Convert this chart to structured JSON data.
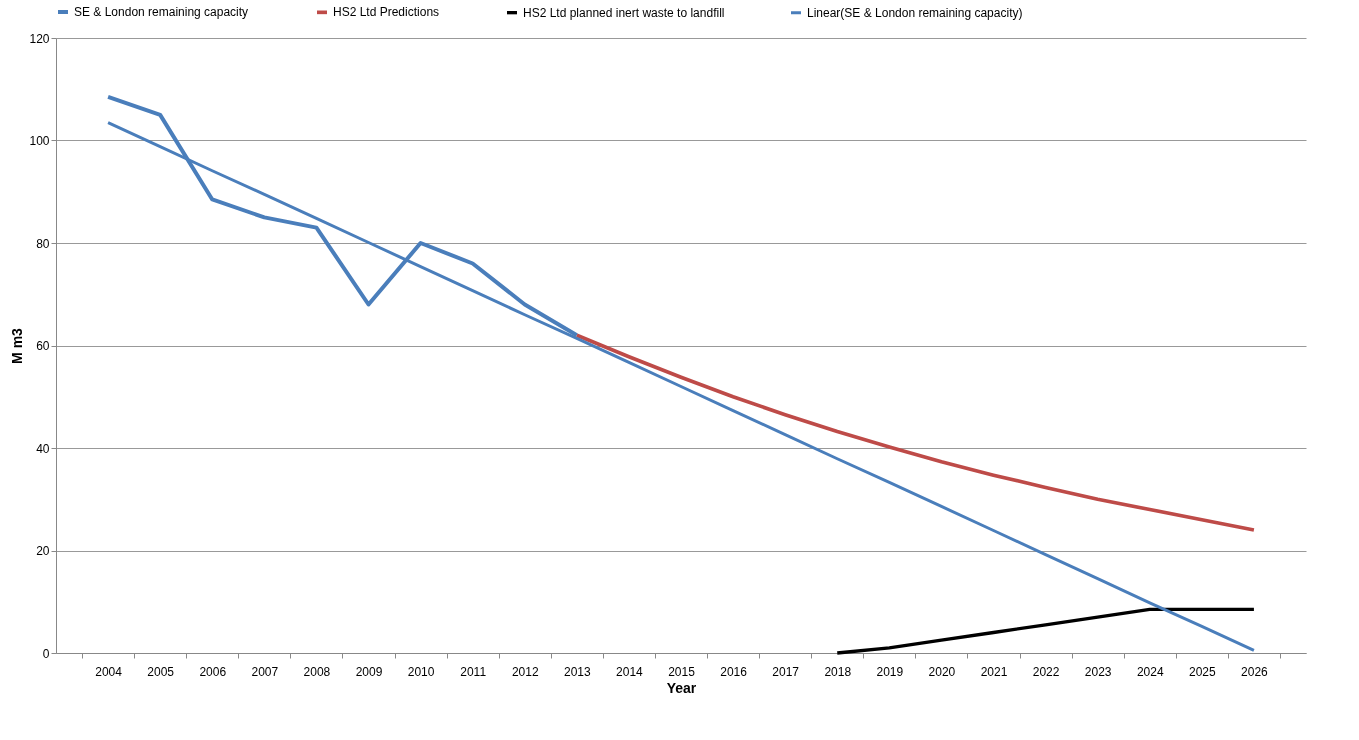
{
  "chart_data": {
    "type": "line",
    "xlabel": "Year",
    "ylabel": "M m3",
    "categories": [
      "2004",
      "2005",
      "2006",
      "2007",
      "2008",
      "2009",
      "2010",
      "2011",
      "2012",
      "2013",
      "2014",
      "2015",
      "2016",
      "2017",
      "2018",
      "2019",
      "2020",
      "2021",
      "2022",
      "2023",
      "2024",
      "2025",
      "2026"
    ],
    "series": [
      {
        "name": "SE & London remaining capacity",
        "color": "#4a7ebb",
        "values": [
          108.5,
          105,
          88.5,
          85,
          83,
          68,
          80,
          76,
          68,
          62,
          null,
          null,
          null,
          null,
          null,
          null,
          null,
          null,
          null,
          null,
          null,
          null,
          null
        ]
      },
      {
        "name": "HS2 Ltd Predictions",
        "color": "#be4b48",
        "values": [
          null,
          null,
          null,
          null,
          null,
          null,
          null,
          null,
          null,
          62,
          57.8,
          53.8,
          50,
          46.5,
          43.2,
          40.2,
          37.3,
          34.7,
          32.3,
          30,
          28,
          26,
          24
        ]
      },
      {
        "name": "HS2 Ltd planned inert waste to landfill",
        "color": "#000000",
        "values": [
          null,
          null,
          null,
          null,
          null,
          null,
          null,
          null,
          null,
          null,
          null,
          null,
          null,
          null,
          0,
          1,
          2.5,
          4,
          5.5,
          7,
          8.5,
          8.5,
          8.5
        ]
      },
      {
        "name": "Linear(SE & London remaining capacity)",
        "color": "#4a7ebb",
        "type": "line",
        "values": [
          103.5,
          98.8,
          94.1,
          89.5,
          84.8,
          80.1,
          75.4,
          70.7,
          66.0,
          61.4,
          56.7,
          52.0,
          47.3,
          42.6,
          37.9,
          33.3,
          28.6,
          23.9,
          19.2,
          14.5,
          9.8,
          5.2,
          0.5
        ]
      }
    ],
    "ylim": [
      0,
      120
    ],
    "yticks": [
      0,
      20,
      40,
      60,
      80,
      100,
      120
    ],
    "grid": "y",
    "legend": "top",
    "marker": "none",
    "line_style": "solid"
  }
}
